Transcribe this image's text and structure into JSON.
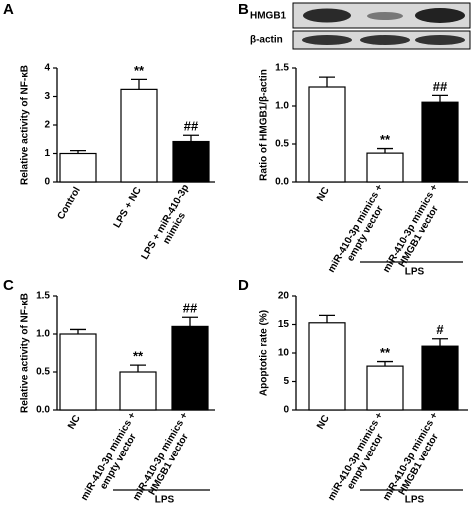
{
  "panel_labels": [
    "A",
    "B",
    "C",
    "D"
  ],
  "blot": {
    "rows": [
      "HMGB1",
      "β-actin"
    ]
  },
  "chart_data": [
    {
      "type": "bar",
      "ylabel": "Relative activity of NF-κB",
      "categories": [
        "Control",
        "LPS + NC",
        [
          "LPS + miR-410-3p",
          "mimics"
        ]
      ],
      "values": [
        1.0,
        3.25,
        1.42
      ],
      "errors": [
        0.1,
        0.35,
        0.22
      ],
      "colors": [
        "#ffffff",
        "#ffffff",
        "#000000"
      ],
      "significance": [
        null,
        "**",
        "##"
      ],
      "ylim": [
        0,
        4
      ],
      "yticks": [
        0,
        1,
        2,
        3,
        4
      ]
    },
    {
      "type": "bar",
      "ylabel": "Ratio of HMGB1/β-actin",
      "categories": [
        "NC",
        [
          "miR-410-3p mimics +",
          "empty vector"
        ],
        [
          "miR-410-3p mimics +",
          "HMGB1 vector"
        ]
      ],
      "group_label": "LPS",
      "values": [
        1.25,
        0.38,
        1.05
      ],
      "errors": [
        0.13,
        0.06,
        0.09
      ],
      "colors": [
        "#ffffff",
        "#ffffff",
        "#000000"
      ],
      "significance": [
        null,
        "**",
        "##"
      ],
      "ylim": [
        0,
        1.5
      ],
      "yticks": [
        {
          "value": 0,
          "label": "0.0"
        },
        {
          "value": 0.5,
          "label": "0.5"
        },
        {
          "value": 1,
          "label": "1.0"
        },
        {
          "value": 1.5,
          "label": "1.5"
        }
      ]
    },
    {
      "type": "bar",
      "ylabel": "Relative activity of NF-κB",
      "categories": [
        "NC",
        [
          "miR-410-3p mimics +",
          "empty vector"
        ],
        [
          "miR-410-3p mimics +",
          "HMGB1 vector"
        ]
      ],
      "group_label": "LPS",
      "values": [
        1.0,
        0.5,
        1.1
      ],
      "errors": [
        0.06,
        0.09,
        0.12
      ],
      "colors": [
        "#ffffff",
        "#ffffff",
        "#000000"
      ],
      "significance": [
        null,
        "**",
        "##"
      ],
      "ylim": [
        0,
        1.5
      ],
      "yticks": [
        {
          "value": 0,
          "label": "0.0"
        },
        {
          "value": 0.5,
          "label": "0.5"
        },
        {
          "value": 1,
          "label": "1.0"
        },
        {
          "value": 1.5,
          "label": "1.5"
        }
      ]
    },
    {
      "type": "bar",
      "ylabel": "Apoptotic rate (%)",
      "categories": [
        "NC",
        [
          "miR-410-3p mimics +",
          "empty vector"
        ],
        [
          "miR-410-3p mimics +",
          "HMGB1 vector"
        ]
      ],
      "group_label": "LPS",
      "values": [
        15.3,
        7.7,
        11.2
      ],
      "errors": [
        1.3,
        0.8,
        1.3
      ],
      "colors": [
        "#ffffff",
        "#ffffff",
        "#000000"
      ],
      "significance": [
        null,
        "**",
        "#"
      ],
      "ylim": [
        0,
        20
      ],
      "yticks": [
        0,
        5,
        10,
        15,
        20
      ]
    }
  ]
}
